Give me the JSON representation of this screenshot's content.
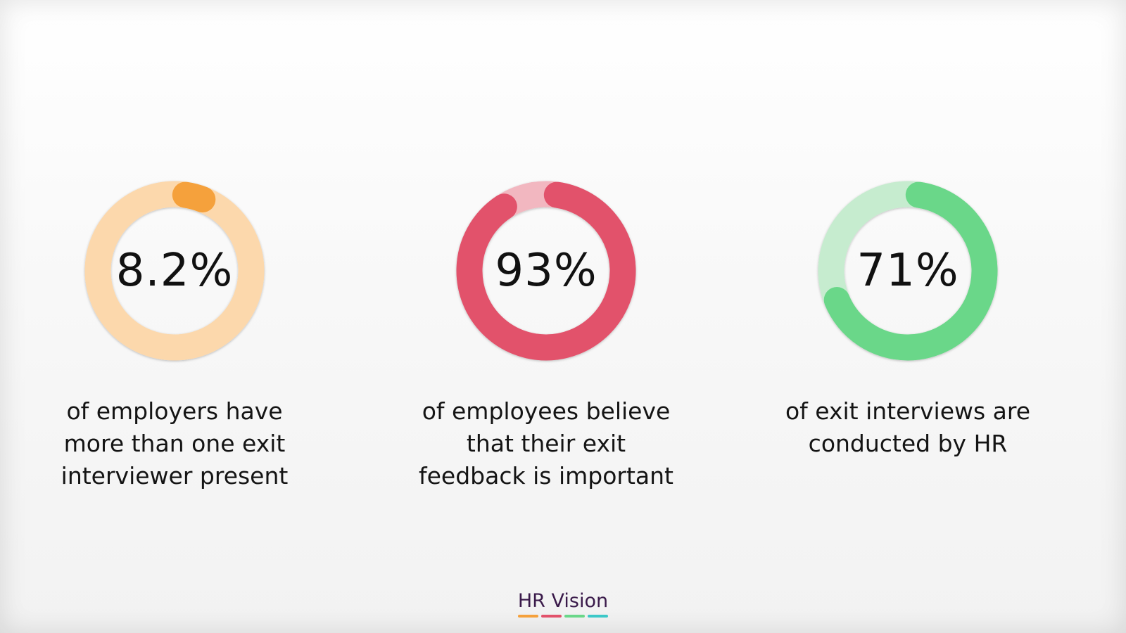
{
  "chart_data": [
    {
      "type": "pie",
      "values": [
        8.2
      ],
      "value_label": "8.2%",
      "caption_lines": [
        "of employers have",
        "more than one exit",
        "interviewer present"
      ],
      "colors": {
        "fill": "#f5a13c",
        "track": "#fcd8ac"
      }
    },
    {
      "type": "pie",
      "values": [
        93
      ],
      "value_label": "93%",
      "caption_lines": [
        "of employees believe",
        "that their exit",
        "feedback is important"
      ],
      "colors": {
        "fill": "#e2526b",
        "track": "#f2b7c0"
      }
    },
    {
      "type": "pie",
      "values": [
        71
      ],
      "value_label": "71%",
      "caption_lines": [
        "of exit interviews are",
        "conducted by HR"
      ],
      "colors": {
        "fill": "#6ad789",
        "track": "#c6eccf"
      }
    }
  ],
  "brand": {
    "name": "HR Vision",
    "bar_colors": [
      "#f5a13c",
      "#e2526b",
      "#6ad789",
      "#3cc8c8"
    ]
  }
}
